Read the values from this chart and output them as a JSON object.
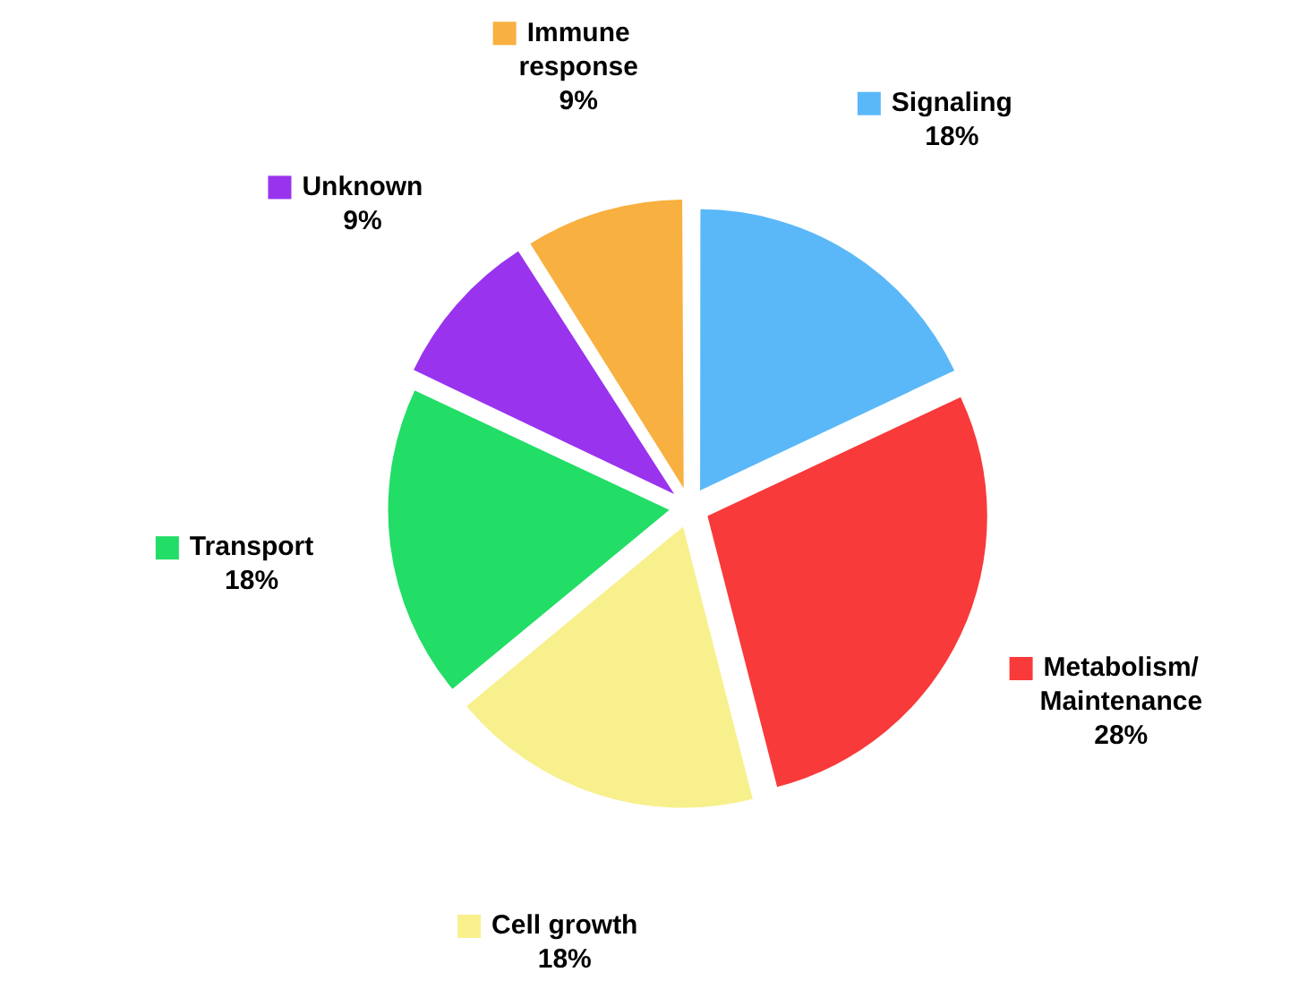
{
  "chart_data": {
    "type": "pie",
    "categories": [
      "Signaling",
      "Metabolism/\nMaintenance",
      "Cell growth",
      "Transport",
      "Unknown",
      "Immune\nresponse"
    ],
    "values": [
      18,
      28,
      18,
      18,
      9,
      9
    ],
    "value_labels": [
      "18%",
      "28%",
      "18%",
      "18%",
      "9%",
      "9%"
    ],
    "colors": [
      "#5ab8f8",
      "#f83a3a",
      "#f8f08c",
      "#22dd66",
      "#9933ee",
      "#f8b040"
    ],
    "legend": true
  }
}
